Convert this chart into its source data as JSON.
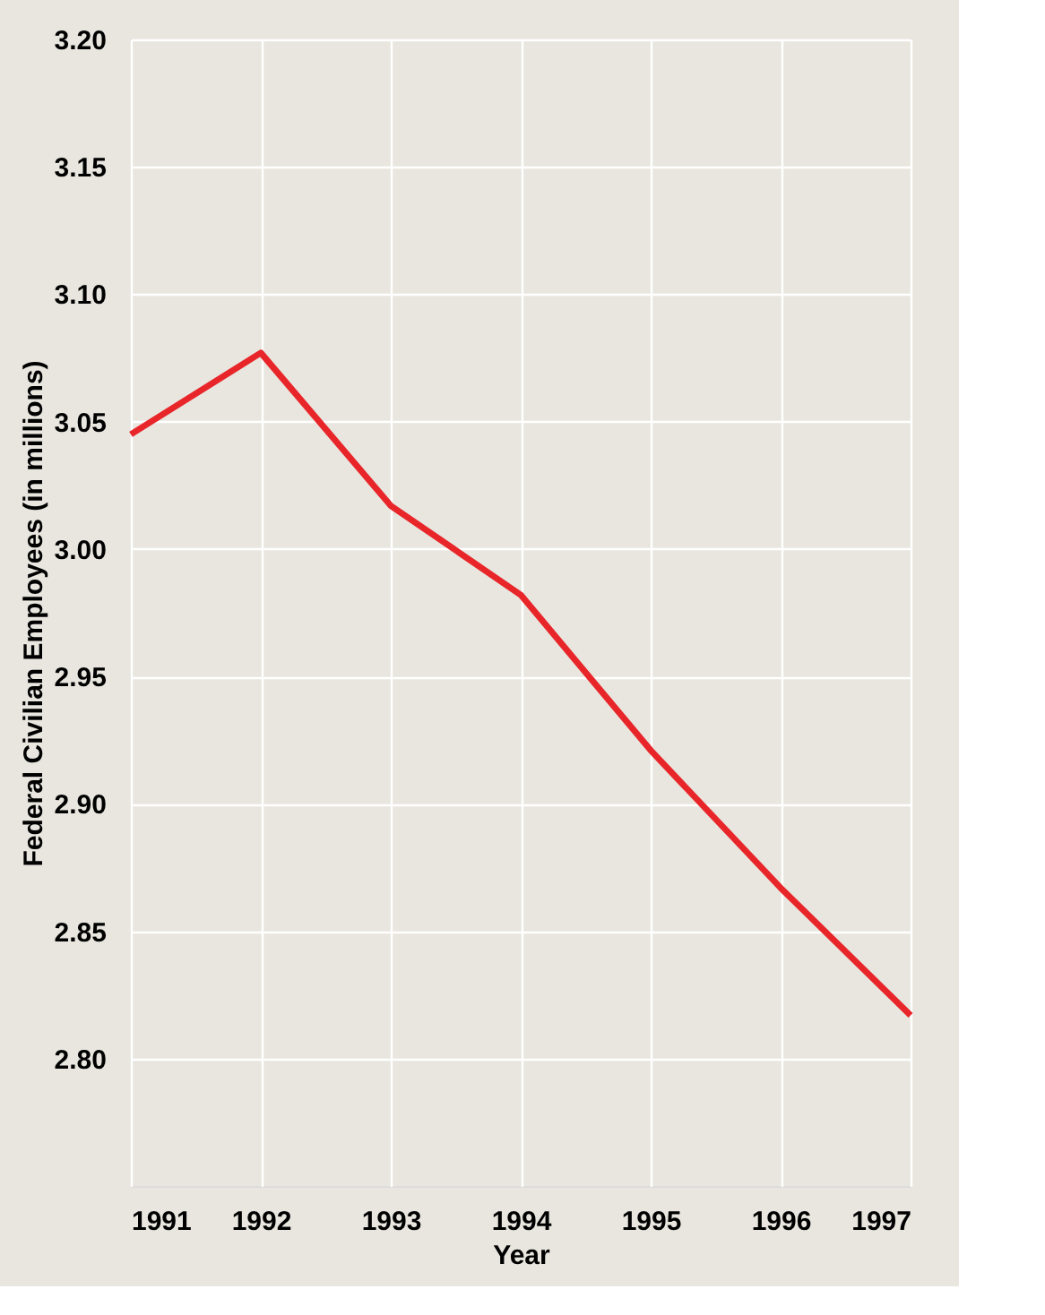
{
  "chart_data": {
    "type": "line",
    "xlabel": "Year",
    "ylabel": "Federal Civilian Employees (in millions)",
    "x": [
      1991,
      1992,
      1993,
      1994,
      1995,
      1996,
      1997
    ],
    "series": [
      {
        "color": "#e8262a",
        "values": [
          3.045,
          3.077,
          3.017,
          2.982,
          2.921,
          2.867,
          2.817
        ]
      }
    ],
    "xlim": [
      1991,
      1997
    ],
    "xticks": [
      1991,
      1992,
      1993,
      1994,
      1995,
      1996,
      1997
    ],
    "ylim": [
      2.75,
      3.2
    ],
    "yticks": [
      {
        "value": 2.8,
        "label": "2.80"
      },
      {
        "value": 2.85,
        "label": "2.85"
      },
      {
        "value": 2.9,
        "label": "2.90"
      },
      {
        "value": 2.95,
        "label": "2.95"
      },
      {
        "value": 3.0,
        "label": "3.00"
      },
      {
        "value": 3.05,
        "label": "3.05"
      },
      {
        "value": 3.1,
        "label": "3.10"
      },
      {
        "value": 3.15,
        "label": "3.15"
      },
      {
        "value": 3.2,
        "label": "3.20"
      }
    ],
    "grid": true,
    "marker": "none",
    "line_style": "solid"
  }
}
